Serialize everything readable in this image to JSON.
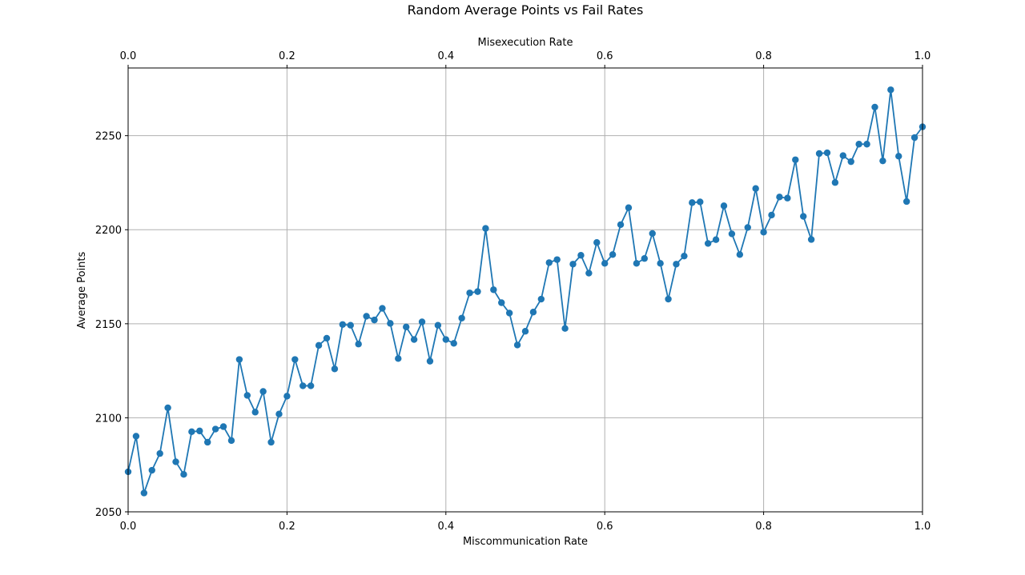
{
  "chart_data": {
    "type": "line",
    "title": "Random Average Points vs Fail Rates",
    "xlabel": "Miscommunication Rate",
    "x2label": "Misexecution Rate",
    "ylabel": "Average Points",
    "xlim": [
      0,
      1
    ],
    "x2lim": [
      0,
      1
    ],
    "ylim": [
      2050,
      2286
    ],
    "x_ticks": [
      0.0,
      0.2,
      0.4,
      0.6,
      0.8,
      1.0
    ],
    "x_tick_labels": [
      "0.0",
      "0.2",
      "0.4",
      "0.6",
      "0.8",
      "1.0"
    ],
    "x2_ticks": [
      0.0,
      0.2,
      0.4,
      0.6,
      0.8,
      1.0
    ],
    "x2_tick_labels": [
      "0.0",
      "0.2",
      "0.4",
      "0.6",
      "0.8",
      "1.0"
    ],
    "y_ticks": [
      2050,
      2100,
      2150,
      2200,
      2250
    ],
    "y_tick_labels": [
      "2050",
      "2100",
      "2150",
      "2200",
      "2250"
    ],
    "grid": true,
    "color": "#1f77b4",
    "marker": "circle",
    "series": [
      {
        "x": [
          0.0,
          0.01,
          0.02,
          0.03,
          0.04,
          0.05,
          0.06,
          0.07,
          0.08,
          0.09,
          0.1,
          0.11,
          0.12,
          0.13,
          0.14,
          0.15,
          0.16,
          0.17,
          0.18,
          0.19,
          0.2,
          0.21,
          0.22,
          0.23,
          0.24,
          0.25,
          0.26,
          0.27,
          0.28,
          0.29,
          0.3,
          0.31,
          0.32,
          0.33,
          0.34,
          0.35,
          0.36,
          0.37,
          0.38,
          0.39,
          0.4,
          0.41,
          0.42,
          0.43,
          0.44,
          0.45,
          0.46,
          0.47,
          0.48,
          0.49,
          0.5,
          0.51,
          0.52,
          0.53,
          0.54,
          0.55,
          0.56,
          0.57,
          0.58,
          0.59,
          0.6,
          0.61,
          0.62,
          0.63,
          0.64,
          0.65,
          0.66,
          0.67,
          0.68,
          0.69,
          0.7,
          0.71,
          0.72,
          0.73,
          0.74,
          0.75,
          0.76,
          0.77,
          0.78,
          0.79,
          0.8,
          0.81,
          0.82,
          0.83,
          0.84,
          0.85,
          0.86,
          0.87,
          0.88,
          0.89,
          0.9,
          0.91,
          0.92,
          0.93,
          0.94,
          0.95,
          0.96,
          0.97,
          0.98,
          0.99,
          1.0
        ],
        "values": [
          2071.3,
          2090.2,
          2060.0,
          2072.1,
          2081.0,
          2105.3,
          2076.6,
          2069.9,
          2092.6,
          2093.0,
          2087.0,
          2094.0,
          2095.3,
          2087.9,
          2131.0,
          2111.9,
          2103.0,
          2114.0,
          2087.0,
          2102.0,
          2111.5,
          2131.0,
          2117.0,
          2117.0,
          2138.5,
          2142.3,
          2126.0,
          2149.6,
          2149.2,
          2139.2,
          2154.0,
          2152.0,
          2158.2,
          2150.2,
          2131.5,
          2148.3,
          2141.6,
          2151.0,
          2130.1,
          2149.2,
          2141.6,
          2139.6,
          2153.0,
          2166.4,
          2167.1,
          2200.7,
          2168.1,
          2161.2,
          2155.7,
          2138.7,
          2146.0,
          2156.2,
          2163.1,
          2182.5,
          2184.1,
          2147.5,
          2181.7,
          2186.4,
          2176.9,
          2193.2,
          2182.1,
          2186.8,
          2202.7,
          2211.7,
          2182.1,
          2184.7,
          2198.0,
          2182.1,
          2163.1,
          2181.7,
          2186.0,
          2214.4,
          2214.8,
          2192.7,
          2194.7,
          2212.7,
          2197.8,
          2186.8,
          2201.2,
          2221.9,
          2198.7,
          2207.8,
          2217.4,
          2216.8,
          2237.2,
          2207.1,
          2194.8,
          2240.5,
          2240.9,
          2225.1,
          2239.4,
          2236.2,
          2245.5,
          2245.5,
          2265.2,
          2236.6,
          2274.4,
          2239.1,
          2215.0,
          2249.0,
          2254.7
        ]
      }
    ]
  }
}
